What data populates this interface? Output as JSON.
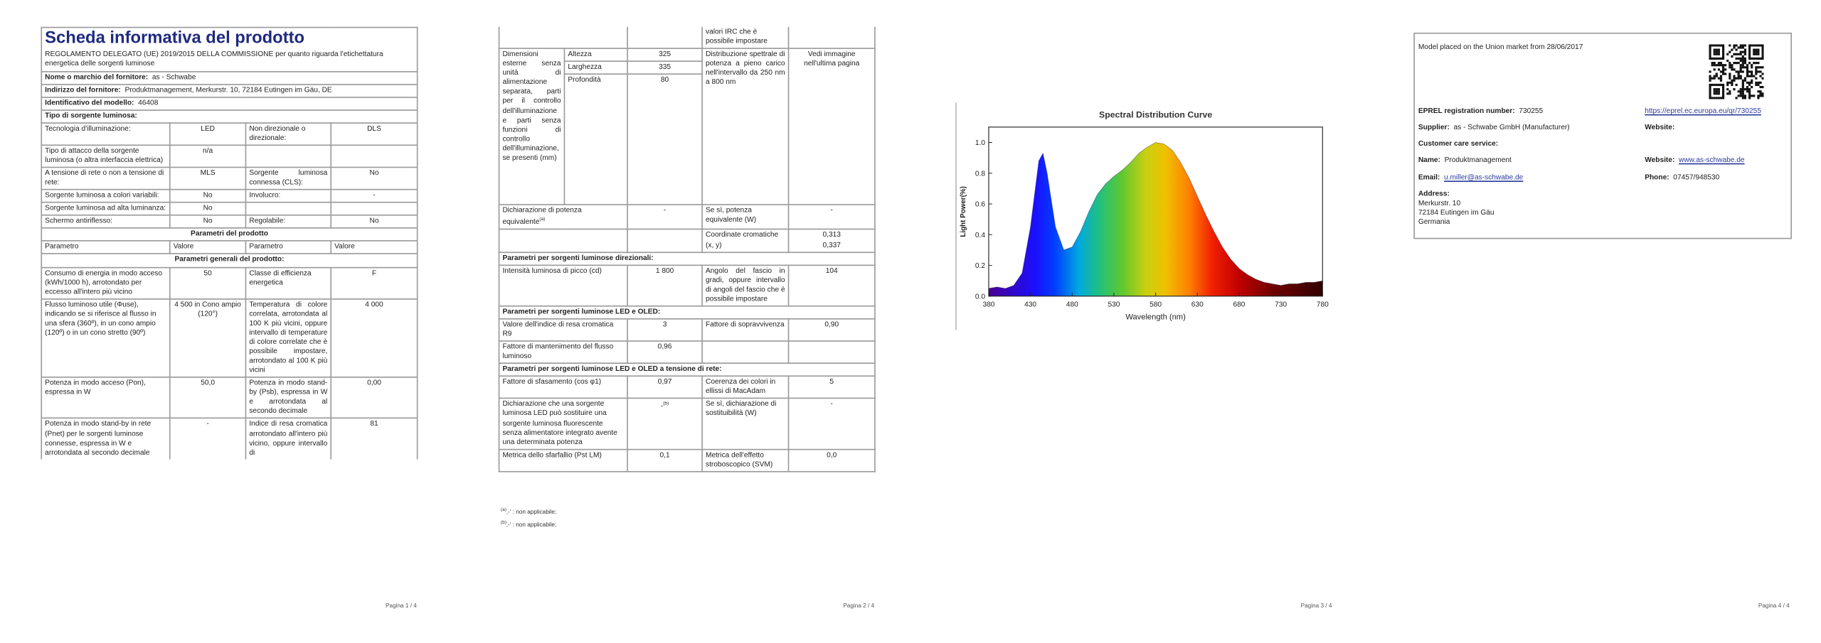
{
  "page1": {
    "title": "Scheda informativa del prodotto",
    "regulation": "REGOLAMENTO DELEGATO (UE) 2019/2015 DELLA COMMISSIONE per quanto riguarda l'etichettatura energetica delle sorgenti luminose",
    "supplier": [
      {
        "label": "Nome o marchio del fornitore:",
        "value": "as - Schwabe"
      },
      {
        "label": "Indirizzo del fornitore:",
        "value": "Produktmanagement, Merkurstr. 10, 72184 Eutingen im Gäu, DE"
      },
      {
        "label": "Identificativo del modello:",
        "value": "46408"
      }
    ],
    "light_source_heading": "Tipo di sorgente luminosa:",
    "light_source_rows": [
      [
        "Tecnologia d'illuminazione:",
        "LED",
        "Non direzionale o direzionale:",
        "DLS"
      ],
      [
        "Tipo di attacco della sorgente luminosa (o altra interfaccia elettrica)",
        "n/a"
      ],
      [
        "A tensione di rete o non a tensione di rete:",
        "MLS",
        "Sorgente luminosa connessa (CLS):",
        "No"
      ],
      [
        "Sorgente luminosa a colori variabili:",
        "No",
        "Involucro:",
        "-"
      ],
      [
        "Sorgente luminosa ad alta luminanza:",
        "No"
      ],
      [
        "Schermo antiriflesso:",
        "No",
        "Regolabile:",
        "No"
      ]
    ],
    "params_heading": "Parametri del prodotto",
    "params_columns": [
      "Parametro",
      "Valore",
      "Parametro",
      "Valore"
    ],
    "general_heading": "Parametri generali del prodotto:",
    "general_rows": [
      [
        "Consumo di energia in modo acceso (kWh/1000 h), arrotondato per eccesso all'intero più vicino",
        "50",
        "Classe di efficienza energetica",
        "F"
      ],
      [
        "Flusso luminoso utile (Φuse), indicando se si riferisce al flusso in una sfera (360º), in un cono ampio (120º) o in un cono stretto (90º)",
        "4 500 in Cono ampio (120°)",
        "Temperatura di colore correlata, arrotondata al 100 K più vicini, oppure intervallo di temperature di colore correlate che è possibile impostare, arrotondato al 100 K più vicini",
        "4 000"
      ],
      [
        "Potenza in modo acceso (Pon), espressa in W",
        "50,0",
        "Potenza in modo stand-by (Psb), espressa in W e arrotondata al secondo decimale",
        "0,00"
      ],
      [
        "Potenza in modo stand-by in rete (Pnet) per le sorgenti luminose connesse, espressa in W e arrotondata al secondo decimale",
        "-",
        "Indice di resa cromatica arrotondato all'intero più vicino, oppure intervallo di",
        "81"
      ]
    ],
    "page_number": "Pagina 1 / 4"
  },
  "page2": {
    "continuation": "valori IRC che è possibile impostare",
    "dimensions_label": "Dimensioni esterne senza unità di alimentazione separata, parti per il controllo dell'illuminazione e parti senza funzioni di controllo dell'illuminazione, se presenti (mm)",
    "dimensions": [
      {
        "name": "Altezza",
        "value": "325"
      },
      {
        "name": "Larghezza",
        "value": "335"
      },
      {
        "name": "Profondità",
        "value": "80"
      }
    ],
    "spectral_label": "Distribuzione spettrale di potenza a pieno carico nell'intervallo da 250 nm a 800 nm",
    "spectral_value": "Vedi immagine nell'ultima pagina",
    "equivalent_power_row": [
      "Dichiarazione di potenza equivalente",
      "-",
      "Se sì, potenza equivalente (W)",
      "-"
    ],
    "equivalent_power_note": "(a)",
    "chromaticity_label": "Coordinate cromatiche (x, y)",
    "chromaticity_values": [
      "0,313",
      "0,337"
    ],
    "directional_heading": "Parametri per sorgenti luminose direzionali:",
    "directional_row": [
      "Intensità luminosa di picco (cd)",
      "1 800",
      "Angolo del fascio in gradi, oppure intervallo di angoli del fascio che è possibile impostare",
      "104"
    ],
    "led_heading": "Parametri per sorgenti luminose LED e OLED:",
    "led_rows": [
      [
        "Valore dell'indice di resa cromatica R9",
        "3",
        "Fattore di sopravvivenza",
        "0,90"
      ],
      [
        "Fattore di mantenimento del flusso luminoso",
        "0,96"
      ]
    ],
    "led_mains_heading": "Parametri per sorgenti luminose LED e OLED a tensione di rete:",
    "led_mains_rows": [
      [
        "Fattore di sfasamento (cos φ1)",
        "0,97",
        "Coerenza dei colori in ellissi di MacAdam",
        "5"
      ],
      [
        "Dichiarazione che una sorgente luminosa LED può sostituire una sorgente luminosa fluorescente senza alimentatore integrato avente una determinata potenza",
        "-",
        "Se sì, dichiarazione di sostituibilità (W)",
        "-"
      ],
      [
        "Metrica dello sfarfallio (Pst LM)",
        "0,1",
        "Metrica dell'effetto stroboscopico (SVM)",
        "0,0"
      ]
    ],
    "replacement_note": "(b)",
    "footnotes": [
      {
        "marker": "(a)",
        "text": "‚-‘ : non applicabile;"
      },
      {
        "marker": "(b)",
        "text": "‚-‘ : non applicabile;"
      }
    ],
    "page_number": "Pagina 2 / 4"
  },
  "chart_data": {
    "type": "area",
    "title": "Spectral Distribution Curve",
    "x_label": "Wavelength (nm)",
    "y_label": "Light Power(%)",
    "x": [
      380,
      390,
      400,
      410,
      420,
      430,
      440,
      445,
      450,
      460,
      470,
      480,
      490,
      500,
      510,
      520,
      530,
      540,
      550,
      560,
      570,
      580,
      590,
      600,
      610,
      620,
      630,
      640,
      650,
      660,
      670,
      680,
      690,
      700,
      710,
      720,
      730,
      740,
      750,
      760,
      770,
      780
    ],
    "values": [
      0.05,
      0.06,
      0.05,
      0.07,
      0.15,
      0.45,
      0.88,
      0.93,
      0.8,
      0.45,
      0.3,
      0.32,
      0.42,
      0.55,
      0.66,
      0.73,
      0.78,
      0.82,
      0.87,
      0.93,
      0.97,
      1.0,
      0.99,
      0.95,
      0.87,
      0.77,
      0.65,
      0.53,
      0.42,
      0.32,
      0.24,
      0.18,
      0.14,
      0.11,
      0.09,
      0.08,
      0.07,
      0.08,
      0.08,
      0.09,
      0.09,
      0.1
    ],
    "xlim": [
      380,
      780
    ],
    "ylim": [
      0,
      1.1
    ],
    "xticks": [
      380,
      430,
      480,
      530,
      580,
      630,
      680,
      730,
      780
    ],
    "yticks": [
      {
        "value": 0,
        "label": "0.0"
      },
      {
        "value": 0.2,
        "label": "0.2"
      },
      {
        "value": 0.4,
        "label": "0.4"
      },
      {
        "value": 0.6,
        "label": "0.6"
      },
      {
        "value": 0.8,
        "label": "0.8"
      },
      {
        "value": 1,
        "label": "1.0"
      }
    ],
    "page_number": "Pagina 3 / 4"
  },
  "page4": {
    "market_date": "Model placed on the Union market from 28/06/2017",
    "eprel_label": "EPREL registration number:",
    "eprel_number": "730255",
    "eprel_link": "https://eprel.ec.europa.eu/qr/730255",
    "supplier_label": "Supplier:",
    "supplier_value": "as - Schwabe GmbH (Manufacturer)",
    "website_label_1": "Website:",
    "customer_care": "Customer care service:",
    "name_label": "Name:",
    "name_value": "Produktmanagement",
    "website_label_2": "Website:",
    "website_value": "www.as-schwabe.de",
    "email_label": "Email:",
    "email_value": "u.miller@as-schwabe.de",
    "phone_label": "Phone:",
    "phone_value": "07457/948530",
    "address_label": "Address:",
    "address_lines": [
      "Merkurstr. 10",
      "72184 Eutingen im Gäu",
      "Germania"
    ],
    "page_number": "Pagina 4 / 4"
  }
}
